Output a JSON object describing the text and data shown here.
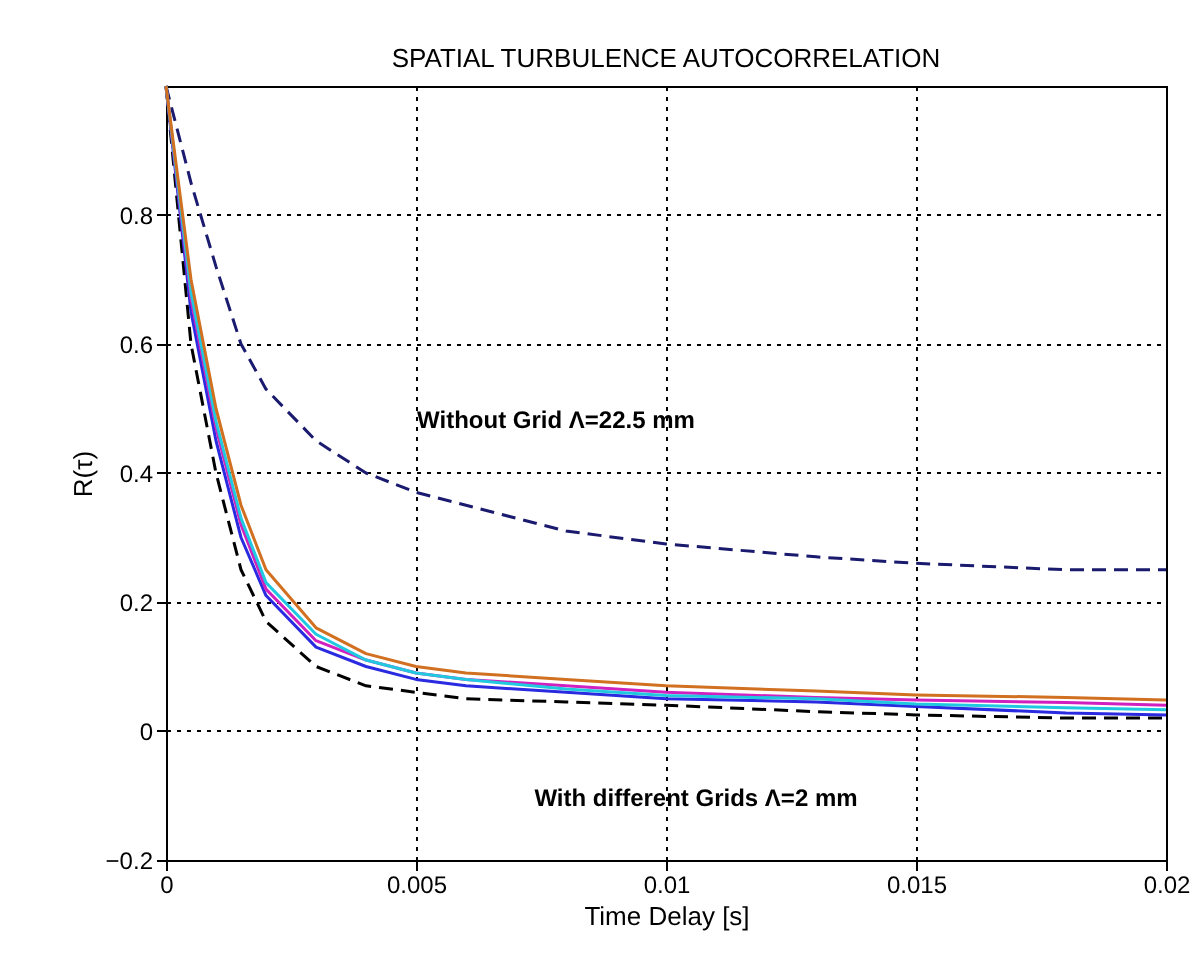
{
  "chart_data": {
    "type": "line",
    "title": "SPATIAL TURBULENCE AUTOCORRELATION",
    "xlabel": "Time Delay [s]",
    "ylabel": "R(τ)",
    "x": [
      0,
      0.0005,
      0.001,
      0.0015,
      0.002,
      0.003,
      0.004,
      0.005,
      0.006,
      0.008,
      0.01,
      0.013,
      0.015,
      0.018,
      0.02
    ],
    "xlim": [
      0,
      0.02
    ],
    "xticks": [
      0,
      0.005,
      0.01,
      0.015,
      0.02
    ],
    "ylim": [
      -0.2,
      1
    ],
    "yticks": [
      -0.2,
      0,
      0.2,
      0.4,
      0.6,
      0.8
    ],
    "grid": true,
    "series": [
      {
        "color": "#1a1a6e",
        "line_style": "dashed",
        "values": [
          1,
          0.85,
          0.72,
          0.6,
          0.53,
          0.45,
          0.4,
          0.37,
          0.35,
          0.31,
          0.29,
          0.27,
          0.26,
          0.25,
          0.25
        ]
      },
      {
        "color": "#000000",
        "line_style": "dashed",
        "values": [
          1,
          0.6,
          0.4,
          0.25,
          0.17,
          0.1,
          0.07,
          0.06,
          0.05,
          0.045,
          0.04,
          0.03,
          0.025,
          0.02,
          0.02
        ]
      },
      {
        "color": "#2a2ae0",
        "line_style": "solid",
        "values": [
          1,
          0.65,
          0.45,
          0.3,
          0.21,
          0.13,
          0.1,
          0.08,
          0.07,
          0.06,
          0.05,
          0.045,
          0.038,
          0.028,
          0.025
        ]
      },
      {
        "color": "#d020c0",
        "line_style": "solid",
        "values": [
          1,
          0.67,
          0.47,
          0.32,
          0.22,
          0.14,
          0.11,
          0.09,
          0.08,
          0.07,
          0.06,
          0.052,
          0.048,
          0.044,
          0.04
        ]
      },
      {
        "color": "#20c8e0",
        "line_style": "solid",
        "values": [
          1,
          0.68,
          0.48,
          0.33,
          0.23,
          0.15,
          0.11,
          0.09,
          0.08,
          0.065,
          0.055,
          0.05,
          0.042,
          0.036,
          0.033
        ]
      },
      {
        "color": "#d07020",
        "line_style": "solid",
        "values": [
          1,
          0.7,
          0.5,
          0.35,
          0.25,
          0.16,
          0.12,
          0.1,
          0.09,
          0.08,
          0.07,
          0.062,
          0.056,
          0.052,
          0.048
        ]
      }
    ],
    "annotations": [
      "Without Grid   Λ=22.5 mm",
      "With different Grids   Λ=2 mm"
    ]
  }
}
